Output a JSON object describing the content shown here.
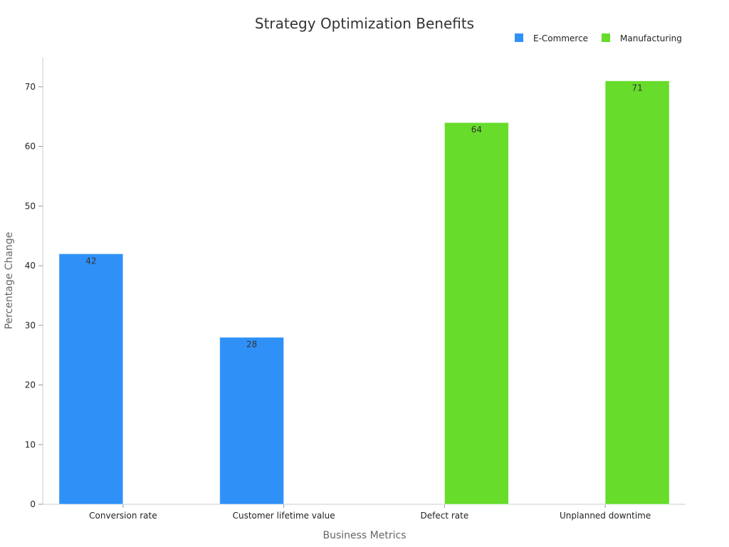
{
  "chart_data": {
    "type": "bar",
    "title": "Strategy Optimization Benefits",
    "xlabel": "Business Metrics",
    "ylabel": "Percentage Change",
    "categories": [
      "Conversion rate",
      "Customer lifetime value",
      "Defect rate",
      "Unplanned downtime"
    ],
    "series": [
      {
        "name": "E-Commerce",
        "color": "#2f91f8",
        "values": [
          42,
          28,
          null,
          null
        ]
      },
      {
        "name": "Manufacturing",
        "color": "#67dc2a",
        "values": [
          null,
          null,
          64,
          71
        ]
      }
    ],
    "ylim": [
      0,
      75
    ],
    "yticks": [
      0,
      10,
      20,
      30,
      40,
      50,
      60,
      70
    ],
    "grid": false,
    "legend": "top-right"
  }
}
